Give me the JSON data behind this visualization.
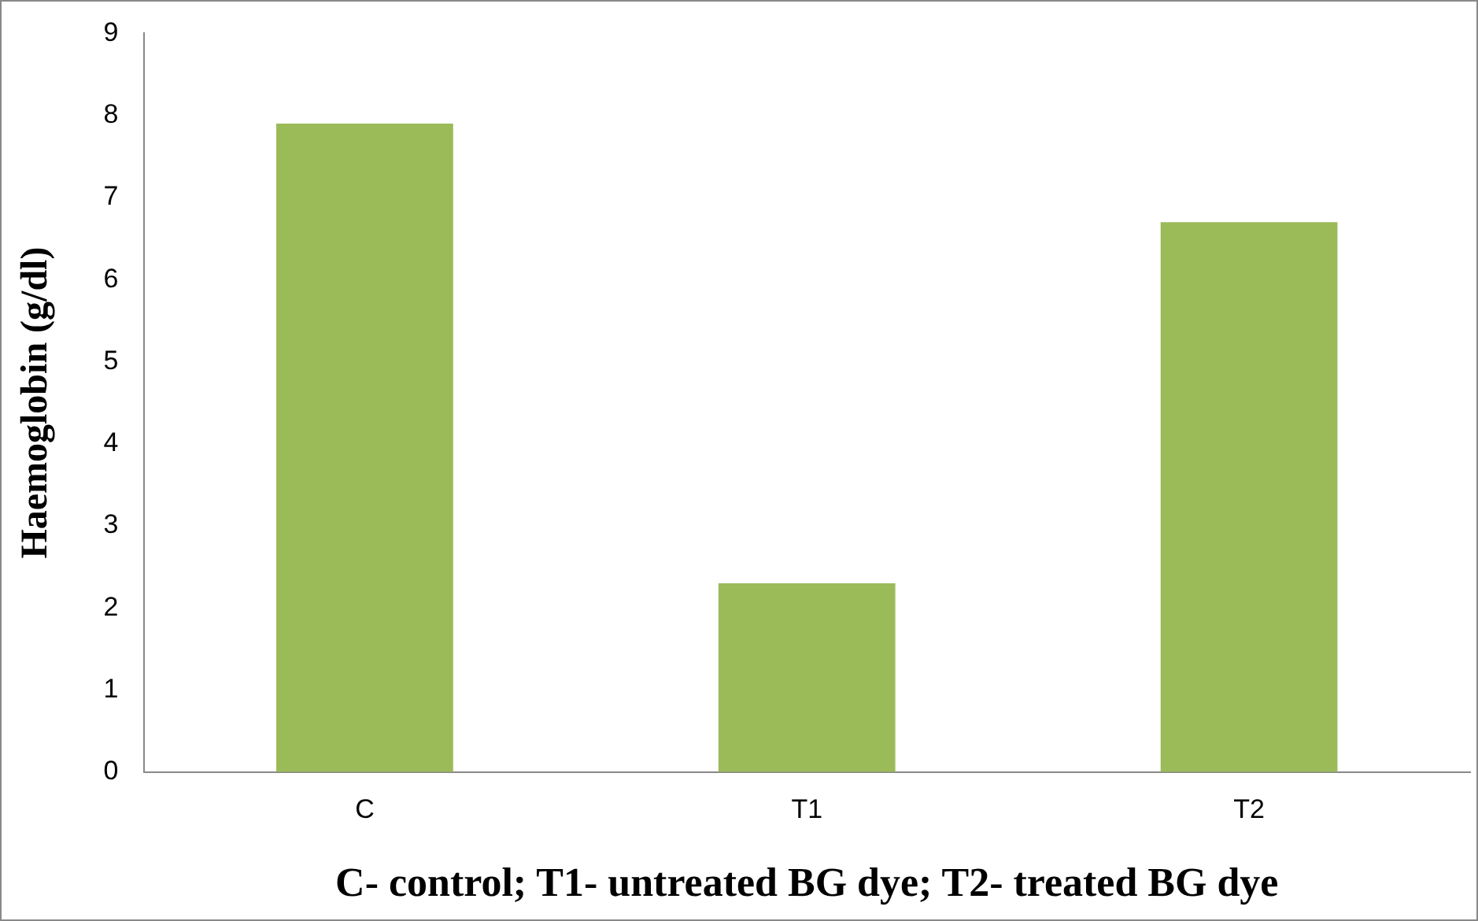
{
  "chart_data": {
    "type": "bar",
    "categories": [
      "C",
      "T1",
      "T2"
    ],
    "values": [
      7.9,
      2.3,
      6.7
    ],
    "color": "#9bbb59",
    "ylabel": "Haemoglobin (g/dl)",
    "xlabel": "C- control; T1- untreated BG dye; T2- treated BG dye",
    "ylim": [
      0,
      9
    ],
    "yticks": [
      0,
      1,
      2,
      3,
      4,
      5,
      6,
      7,
      8,
      9
    ],
    "grid": false,
    "legend": false
  }
}
